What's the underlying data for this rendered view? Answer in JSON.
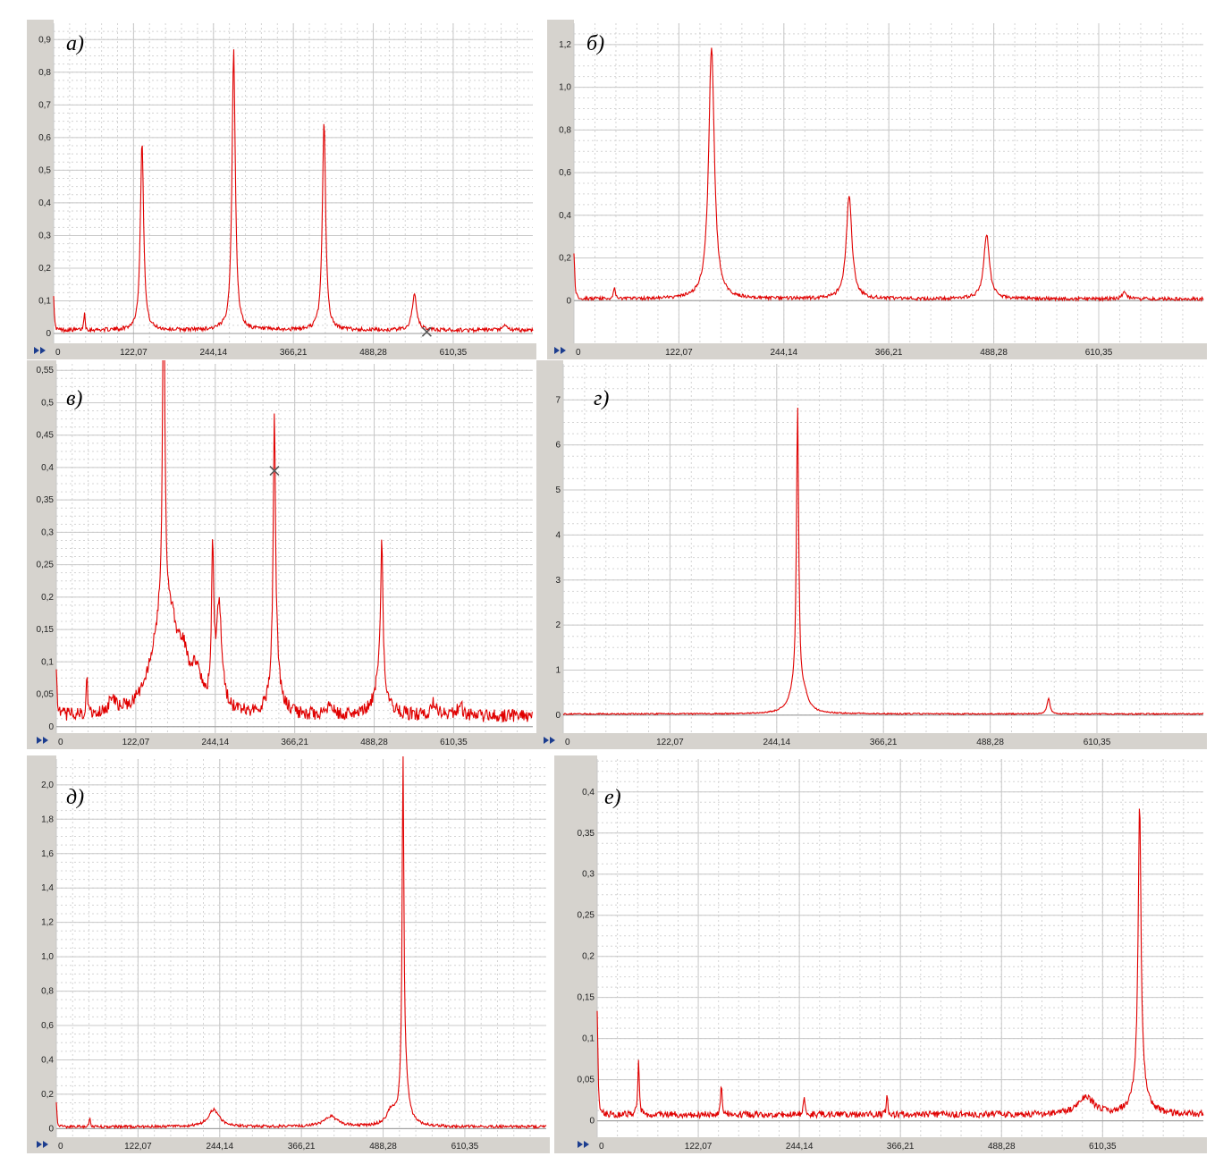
{
  "chart_data": [
    {
      "id": "a",
      "label": "а)",
      "type": "line",
      "xticks": [
        "0",
        "122,07",
        "244,14",
        "366,21",
        "488,28",
        "610,35"
      ],
      "xlim": [
        0,
        732
      ],
      "yticks": [
        "0",
        "0,1",
        "0,2",
        "0,3",
        "0,4",
        "0,5",
        "0,6",
        "0,7",
        "0,8",
        "0,9"
      ],
      "ylim": [
        -0.03,
        0.95
      ],
      "series": [
        {
          "color": "#e00000",
          "noise": 0.006,
          "base": 0.008,
          "peaks": [
            [
              0,
              0.11,
              1
            ],
            [
              47,
              0.06,
              1
            ],
            [
              135,
              0.58,
              3
            ],
            [
              275,
              0.86,
              3
            ],
            [
              413,
              0.64,
              3
            ],
            [
              551,
              0.11,
              4
            ],
            [
              690,
              0.015,
              3
            ]
          ]
        }
      ],
      "marker": {
        "x": 570,
        "y": 0.005,
        "color": "#3a8fb0"
      }
    },
    {
      "id": "b",
      "label": "б)",
      "type": "line",
      "xticks": [
        "0",
        "122,07",
        "244,14",
        "366,21",
        "488,28",
        "610,35"
      ],
      "xlim": [
        0,
        732
      ],
      "yticks": [
        "0",
        "0,2",
        "0,4",
        "0,6",
        "0,8",
        "1,0",
        "1,2"
      ],
      "ylim": [
        -0.2,
        1.3
      ],
      "series": [
        {
          "color": "#e00000",
          "noise": 0.008,
          "base": 0.005,
          "peaks": [
            [
              0,
              0.22,
              1
            ],
            [
              47,
              0.06,
              1
            ],
            [
              160,
              1.18,
              4
            ],
            [
              320,
              0.48,
              4
            ],
            [
              480,
              0.3,
              4
            ],
            [
              640,
              0.03,
              3
            ]
          ]
        }
      ]
    },
    {
      "id": "c",
      "label": "в)",
      "type": "line",
      "xticks": [
        "0",
        "122,07",
        "244,14",
        "366,21",
        "488,28",
        "610,35"
      ],
      "xlim": [
        0,
        732
      ],
      "yticks": [
        "0",
        "0,05",
        "0,1",
        "0,15",
        "0,2",
        "0,25",
        "0,3",
        "0,35",
        "0,4",
        "0,45",
        "0,5",
        "0,55"
      ],
      "ylim": [
        -0.01,
        0.56
      ],
      "series": [
        {
          "color": "#e00000",
          "noise": 0.01,
          "base": 0.012,
          "peaks": [
            [
              0,
              0.08,
              1
            ],
            [
              47,
              0.06,
              1
            ],
            [
              86,
              0.02,
              6
            ],
            [
              165,
              0.56,
              2
            ],
            [
              158,
              0.1,
              18
            ],
            [
              175,
              0.1,
              14
            ],
            [
              195,
              0.06,
              10
            ],
            [
              215,
              0.05,
              8
            ],
            [
              240,
              0.23,
              2
            ],
            [
              250,
              0.16,
              5
            ],
            [
              335,
              0.39,
              2
            ],
            [
              336,
              0.08,
              8
            ],
            [
              420,
              0.02,
              4
            ],
            [
              500,
              0.22,
              2
            ],
            [
              498,
              0.06,
              10
            ],
            [
              580,
              0.02,
              5
            ],
            [
              620,
              0.02,
              4
            ]
          ]
        }
      ],
      "marker": {
        "x": 335,
        "y": 0.395,
        "color": "#555555"
      }
    },
    {
      "id": "d",
      "label": "г)",
      "type": "line",
      "xticks": [
        "0",
        "122,07",
        "244,14",
        "366,21",
        "488,28",
        "610,35"
      ],
      "xlim": [
        0,
        732
      ],
      "yticks": [
        "0",
        "1",
        "2",
        "3",
        "4",
        "5",
        "6",
        "7"
      ],
      "ylim": [
        -0.4,
        7.8
      ],
      "series": [
        {
          "color": "#e00000",
          "noise": 0.015,
          "base": 0.02,
          "peaks": [
            [
              268,
              6.3,
              1.5
            ],
            [
              266,
              0.5,
              8
            ],
            [
              276,
              0.25,
              5
            ],
            [
              555,
              0.35,
              2
            ]
          ]
        }
      ]
    },
    {
      "id": "e",
      "label": "д)",
      "type": "line",
      "xticks": [
        "0",
        "122,07",
        "244,14",
        "366,21",
        "488,28",
        "610,35"
      ],
      "xlim": [
        0,
        732
      ],
      "yticks": [
        "0",
        "0,2",
        "0,4",
        "0,6",
        "0,8",
        "1,0",
        "1,2",
        "1,4",
        "1,6",
        "1,8",
        "2,0"
      ],
      "ylim": [
        -0.05,
        2.15
      ],
      "series": [
        {
          "color": "#e00000",
          "noise": 0.008,
          "base": 0.008,
          "peaks": [
            [
              0,
              0.15,
              1
            ],
            [
              50,
              0.05,
              1
            ],
            [
              235,
              0.1,
              10
            ],
            [
              410,
              0.06,
              12
            ],
            [
              518,
              1.88,
              1.5
            ],
            [
              520,
              0.3,
              6
            ],
            [
              500,
              0.08,
              8
            ]
          ]
        }
      ]
    },
    {
      "id": "f",
      "label": "е)",
      "type": "line",
      "xticks": [
        "0",
        "122,07",
        "244,14",
        "366,21",
        "488,28",
        "610,35"
      ],
      "xlim": [
        0,
        732
      ],
      "yticks": [
        "0",
        "0,05",
        "0,1",
        "0,15",
        "0,2",
        "0,25",
        "0,3",
        "0,35",
        "0,4"
      ],
      "ylim": [
        -0.02,
        0.44
      ],
      "series": [
        {
          "color": "#e00000",
          "noise": 0.004,
          "base": 0.006,
          "peaks": [
            [
              0,
              0.13,
              1
            ],
            [
              50,
              0.07,
              1
            ],
            [
              150,
              0.04,
              1
            ],
            [
              250,
              0.025,
              1
            ],
            [
              350,
              0.025,
              1
            ],
            [
              590,
              0.02,
              12
            ],
            [
              655,
              0.34,
              2
            ],
            [
              655,
              0.04,
              8
            ]
          ]
        }
      ]
    }
  ]
}
